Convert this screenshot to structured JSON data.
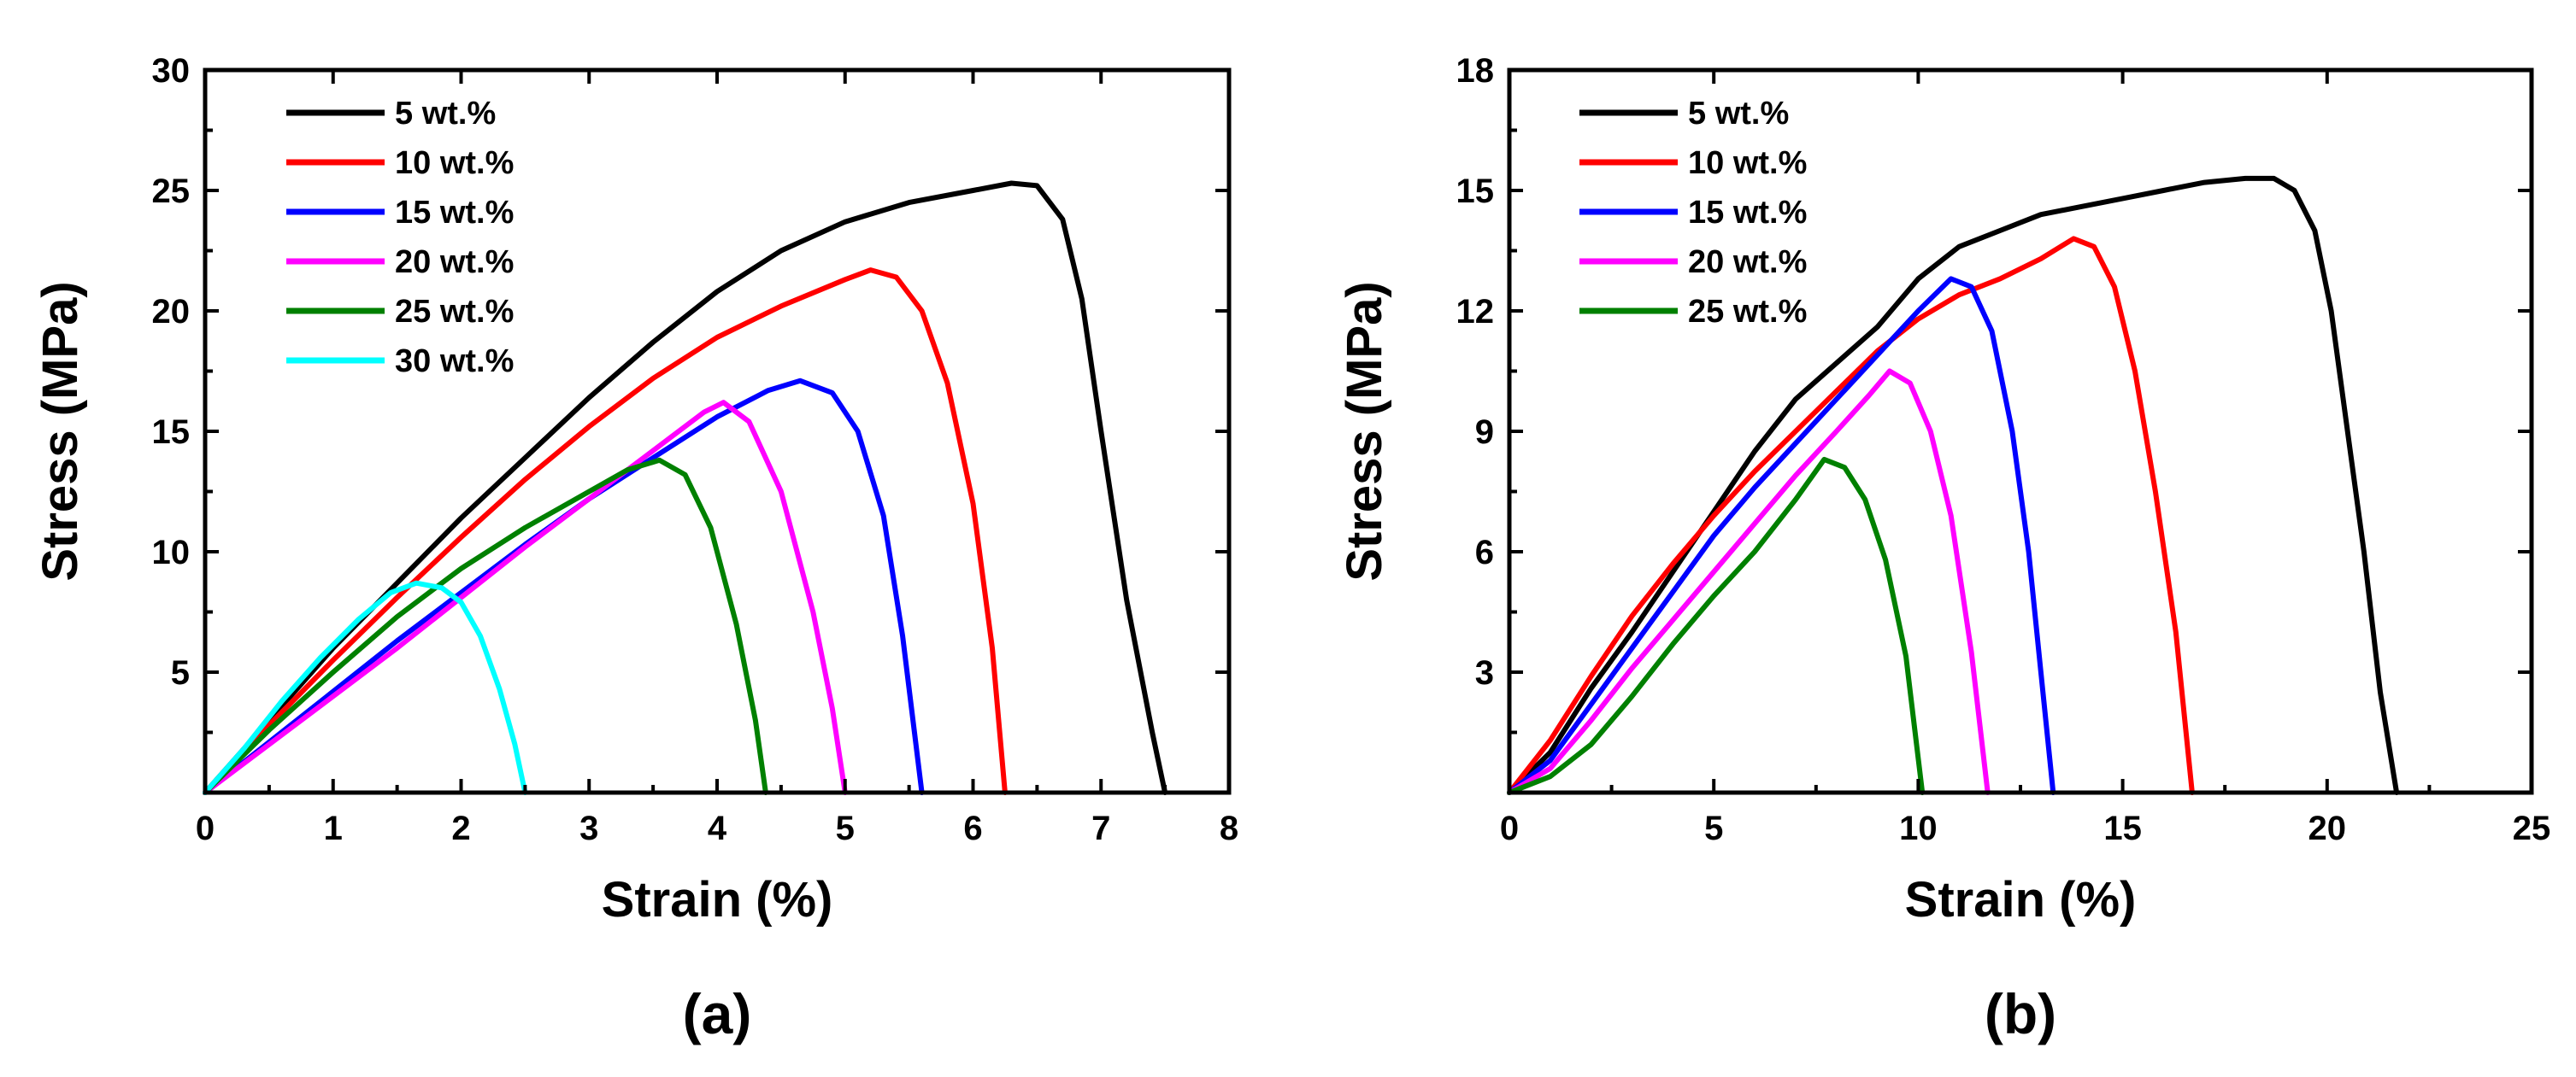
{
  "chart_data": [
    {
      "type": "line",
      "panel_label": "(a)",
      "title": "",
      "xlabel": "Strain (%)",
      "ylabel": "Stress (MPa)",
      "xlim": [
        0,
        8
      ],
      "ylim": [
        0,
        30
      ],
      "xticks": [
        0,
        1,
        2,
        3,
        4,
        5,
        6,
        7,
        8
      ],
      "yticks": [
        5,
        10,
        15,
        20,
        25,
        30
      ],
      "legend_position": "top-left",
      "series": [
        {
          "name": "5 wt.%",
          "color": "#000000",
          "points": [
            [
              0,
              0
            ],
            [
              0.5,
              3.0
            ],
            [
              1,
              6.0
            ],
            [
              1.5,
              8.7
            ],
            [
              2,
              11.4
            ],
            [
              2.5,
              13.9
            ],
            [
              3,
              16.4
            ],
            [
              3.5,
              18.7
            ],
            [
              4,
              20.8
            ],
            [
              4.5,
              22.5
            ],
            [
              5,
              23.7
            ],
            [
              5.5,
              24.5
            ],
            [
              6,
              25.0
            ],
            [
              6.3,
              25.3
            ],
            [
              6.5,
              25.2
            ],
            [
              6.7,
              23.8
            ],
            [
              6.85,
              20.5
            ],
            [
              7,
              15.0
            ],
            [
              7.2,
              8.0
            ],
            [
              7.4,
              2.5
            ],
            [
              7.5,
              0
            ]
          ]
        },
        {
          "name": "10 wt.%",
          "color": "#ff0000",
          "points": [
            [
              0,
              0
            ],
            [
              0.5,
              2.8
            ],
            [
              1,
              5.5
            ],
            [
              1.5,
              8.1
            ],
            [
              2,
              10.6
            ],
            [
              2.5,
              13.0
            ],
            [
              3,
              15.2
            ],
            [
              3.5,
              17.2
            ],
            [
              4,
              18.9
            ],
            [
              4.5,
              20.2
            ],
            [
              5,
              21.3
            ],
            [
              5.2,
              21.7
            ],
            [
              5.4,
              21.4
            ],
            [
              5.6,
              20.0
            ],
            [
              5.8,
              17.0
            ],
            [
              6,
              12.0
            ],
            [
              6.15,
              6.0
            ],
            [
              6.25,
              0
            ]
          ]
        },
        {
          "name": "15 wt.%",
          "color": "#0000ff",
          "points": [
            [
              0,
              0
            ],
            [
              0.5,
              2.1
            ],
            [
              1,
              4.2
            ],
            [
              1.5,
              6.3
            ],
            [
              2,
              8.3
            ],
            [
              2.5,
              10.3
            ],
            [
              3,
              12.2
            ],
            [
              3.5,
              13.9
            ],
            [
              4,
              15.6
            ],
            [
              4.4,
              16.7
            ],
            [
              4.65,
              17.1
            ],
            [
              4.9,
              16.6
            ],
            [
              5.1,
              15.0
            ],
            [
              5.3,
              11.5
            ],
            [
              5.45,
              6.5
            ],
            [
              5.6,
              0
            ]
          ]
        },
        {
          "name": "20 wt.%",
          "color": "#ff00ff",
          "points": [
            [
              0,
              0
            ],
            [
              0.5,
              2.0
            ],
            [
              1,
              4.0
            ],
            [
              1.5,
              6.0
            ],
            [
              2,
              8.1
            ],
            [
              2.5,
              10.2
            ],
            [
              3,
              12.2
            ],
            [
              3.5,
              14.2
            ],
            [
              3.9,
              15.8
            ],
            [
              4.05,
              16.2
            ],
            [
              4.25,
              15.4
            ],
            [
              4.5,
              12.5
            ],
            [
              4.75,
              7.5
            ],
            [
              4.9,
              3.5
            ],
            [
              5,
              0
            ]
          ]
        },
        {
          "name": "25 wt.%",
          "color": "#008000",
          "points": [
            [
              0,
              0
            ],
            [
              0.5,
              2.6
            ],
            [
              1,
              5.0
            ],
            [
              1.5,
              7.3
            ],
            [
              2,
              9.3
            ],
            [
              2.5,
              11.0
            ],
            [
              3,
              12.5
            ],
            [
              3.3,
              13.4
            ],
            [
              3.55,
              13.8
            ],
            [
              3.75,
              13.2
            ],
            [
              3.95,
              11.0
            ],
            [
              4.15,
              7.0
            ],
            [
              4.3,
              3.0
            ],
            [
              4.38,
              0
            ]
          ]
        },
        {
          "name": "30 wt.%",
          "color": "#00ffff",
          "points": [
            [
              0,
              0
            ],
            [
              0.3,
              1.8
            ],
            [
              0.6,
              3.8
            ],
            [
              0.9,
              5.6
            ],
            [
              1.2,
              7.2
            ],
            [
              1.45,
              8.3
            ],
            [
              1.65,
              8.7
            ],
            [
              1.85,
              8.5
            ],
            [
              2,
              7.9
            ],
            [
              2.15,
              6.5
            ],
            [
              2.3,
              4.3
            ],
            [
              2.42,
              2.0
            ],
            [
              2.5,
              0
            ]
          ]
        }
      ]
    },
    {
      "type": "line",
      "panel_label": "(b)",
      "title": "",
      "xlabel": "Strain (%)",
      "ylabel": "Stress (MPa)",
      "xlim": [
        0,
        25
      ],
      "ylim": [
        0,
        18
      ],
      "xticks": [
        0,
        5,
        10,
        15,
        20,
        25
      ],
      "yticks": [
        3,
        6,
        9,
        12,
        15,
        18
      ],
      "legend_position": "top-left",
      "series": [
        {
          "name": "5 wt.%",
          "color": "#000000",
          "points": [
            [
              0,
              0
            ],
            [
              1,
              1.0
            ],
            [
              2,
              2.6
            ],
            [
              3,
              4.0
            ],
            [
              4,
              5.5
            ],
            [
              5,
              7.0
            ],
            [
              6,
              8.5
            ],
            [
              7,
              9.8
            ],
            [
              8,
              10.7
            ],
            [
              9,
              11.6
            ],
            [
              10,
              12.8
            ],
            [
              11,
              13.6
            ],
            [
              12,
              14.0
            ],
            [
              13,
              14.4
            ],
            [
              14,
              14.6
            ],
            [
              15,
              14.8
            ],
            [
              16,
              15.0
            ],
            [
              17,
              15.2
            ],
            [
              18,
              15.3
            ],
            [
              18.7,
              15.3
            ],
            [
              19.2,
              15.0
            ],
            [
              19.7,
              14.0
            ],
            [
              20.1,
              12.0
            ],
            [
              20.5,
              9.0
            ],
            [
              20.9,
              6.0
            ],
            [
              21.3,
              2.5
            ],
            [
              21.7,
              0
            ]
          ]
        },
        {
          "name": "10 wt.%",
          "color": "#ff0000",
          "points": [
            [
              0,
              0
            ],
            [
              1,
              1.3
            ],
            [
              2,
              2.9
            ],
            [
              3,
              4.4
            ],
            [
              4,
              5.7
            ],
            [
              5,
              6.9
            ],
            [
              6,
              8.0
            ],
            [
              7,
              9.0
            ],
            [
              8,
              10.0
            ],
            [
              9,
              11.0
            ],
            [
              10,
              11.8
            ],
            [
              11,
              12.4
            ],
            [
              12,
              12.8
            ],
            [
              13,
              13.3
            ],
            [
              13.8,
              13.8
            ],
            [
              14.3,
              13.6
            ],
            [
              14.8,
              12.6
            ],
            [
              15.3,
              10.5
            ],
            [
              15.8,
              7.5
            ],
            [
              16.3,
              4.0
            ],
            [
              16.7,
              0
            ]
          ]
        },
        {
          "name": "15 wt.%",
          "color": "#0000ff",
          "points": [
            [
              0,
              0
            ],
            [
              1,
              0.8
            ],
            [
              2,
              2.2
            ],
            [
              3,
              3.6
            ],
            [
              4,
              5.0
            ],
            [
              5,
              6.4
            ],
            [
              6,
              7.6
            ],
            [
              7,
              8.7
            ],
            [
              8,
              9.8
            ],
            [
              9,
              10.9
            ],
            [
              10,
              12.0
            ],
            [
              10.8,
              12.8
            ],
            [
              11.3,
              12.6
            ],
            [
              11.8,
              11.5
            ],
            [
              12.3,
              9.0
            ],
            [
              12.7,
              6.0
            ],
            [
              13.0,
              3.0
            ],
            [
              13.3,
              0
            ]
          ]
        },
        {
          "name": "20 wt.%",
          "color": "#ff00ff",
          "points": [
            [
              0,
              0
            ],
            [
              1,
              0.6
            ],
            [
              2,
              1.8
            ],
            [
              3,
              3.1
            ],
            [
              4,
              4.3
            ],
            [
              5,
              5.5
            ],
            [
              6,
              6.7
            ],
            [
              7,
              7.9
            ],
            [
              8,
              9.0
            ],
            [
              8.8,
              9.9
            ],
            [
              9.3,
              10.5
            ],
            [
              9.8,
              10.2
            ],
            [
              10.3,
              9.0
            ],
            [
              10.8,
              6.9
            ],
            [
              11.3,
              3.5
            ],
            [
              11.7,
              0
            ]
          ]
        },
        {
          "name": "25 wt.%",
          "color": "#008000",
          "points": [
            [
              0,
              0
            ],
            [
              1,
              0.4
            ],
            [
              2,
              1.2
            ],
            [
              3,
              2.4
            ],
            [
              4,
              3.7
            ],
            [
              5,
              4.9
            ],
            [
              6,
              6.0
            ],
            [
              7,
              7.3
            ],
            [
              7.7,
              8.3
            ],
            [
              8.2,
              8.1
            ],
            [
              8.7,
              7.3
            ],
            [
              9.2,
              5.8
            ],
            [
              9.7,
              3.4
            ],
            [
              10.1,
              0
            ]
          ]
        }
      ]
    }
  ]
}
